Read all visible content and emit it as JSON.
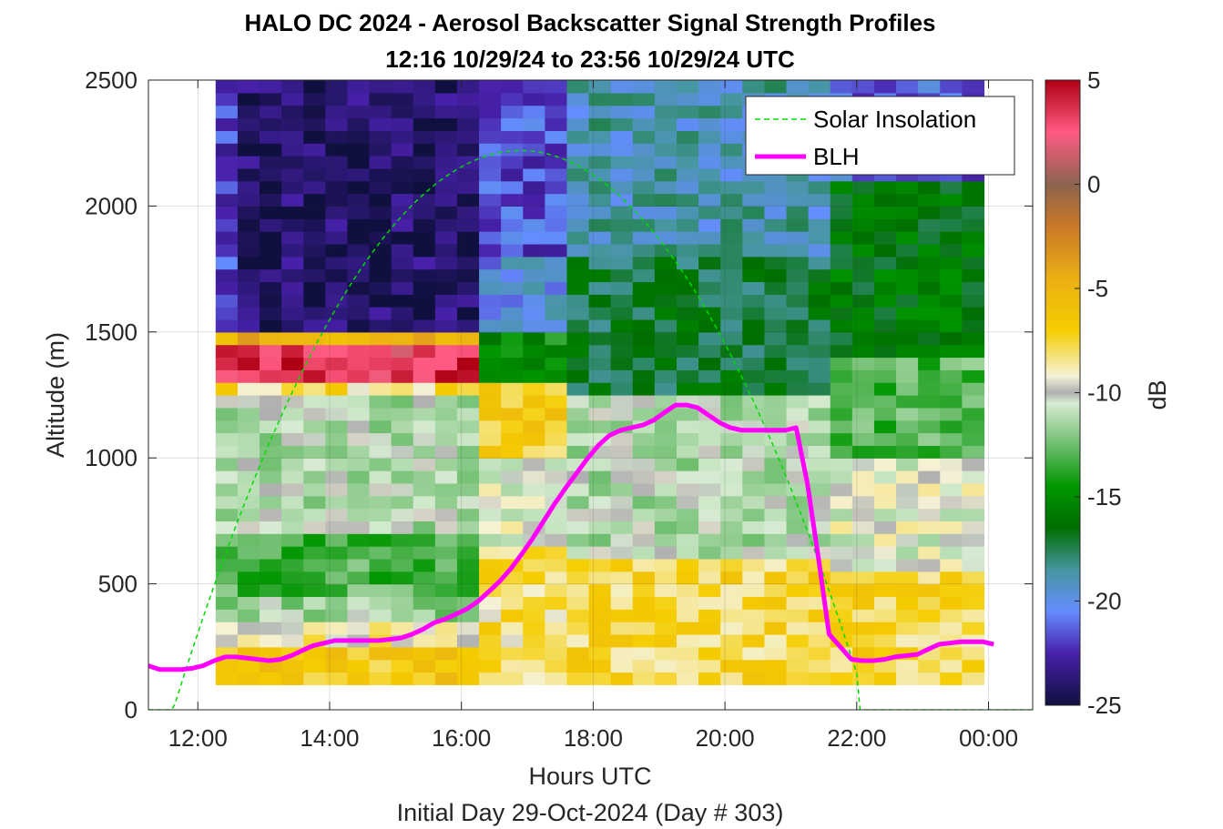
{
  "chart_data": {
    "type": "heatmap",
    "title": "HALO DC 2024 - Aerosol Backscatter Signal Strength Profiles",
    "subtitle": "12:16 10/29/24 to 23:56 10/29/24  UTC",
    "xlabel": "Hours UTC",
    "xlabel2": "Initial Day 29-Oct-2024 (Day # 303)",
    "ylabel": "Altitude (m)",
    "colorbar_label": "dB",
    "xlim": [
      11.25,
      24.67
    ],
    "ylim": [
      0,
      2500
    ],
    "x_ticks": [
      12,
      14,
      16,
      18,
      20,
      22,
      24
    ],
    "x_tick_labels": [
      "12:00",
      "14:00",
      "16:00",
      "18:00",
      "20:00",
      "22:00",
      "00:00"
    ],
    "y_ticks": [
      0,
      500,
      1000,
      1500,
      2000,
      2500
    ],
    "y_tick_labels": [
      "0",
      "500",
      "1000",
      "1500",
      "2000",
      "2500"
    ],
    "clim": [
      -25,
      5
    ],
    "colorbar_ticks": [
      5,
      0,
      -5,
      -10,
      -15,
      -20,
      -25
    ],
    "colorbar_tick_labels": [
      "5",
      "0",
      "-5",
      "-10",
      "-15",
      "-20",
      "-25"
    ],
    "legend": {
      "position": "top-right",
      "entries": [
        {
          "label": "Solar Insolation",
          "color": "#00dd00",
          "style": "dashed"
        },
        {
          "label": "BLH",
          "color": "#ff00ff",
          "style": "solid"
        }
      ]
    },
    "grid": true,
    "heatmap": {
      "time_start": 12.27,
      "time_end": 23.93,
      "n_columns": 35,
      "alt_start": 100,
      "alt_end": 2500,
      "n_rows": 48,
      "bands": [
        {
          "t0": 12.27,
          "t1": 16.3,
          "z0": 100,
          "z1": 250,
          "db": -6.5
        },
        {
          "t0": 12.27,
          "t1": 16.3,
          "z0": 250,
          "z1": 350,
          "db": -9.0
        },
        {
          "t0": 12.27,
          "t1": 16.3,
          "z0": 350,
          "z1": 450,
          "db": -11.5
        },
        {
          "t0": 12.27,
          "t1": 16.3,
          "z0": 450,
          "z1": 700,
          "db": -13.0
        },
        {
          "t0": 12.27,
          "t1": 16.3,
          "z0": 700,
          "z1": 1250,
          "db": -11.0
        },
        {
          "t0": 12.27,
          "t1": 16.3,
          "z0": 1250,
          "z1": 1300,
          "db": -8.0
        },
        {
          "t0": 12.27,
          "t1": 16.3,
          "z0": 1300,
          "z1": 1350,
          "db": 3.5
        },
        {
          "t0": 12.27,
          "t1": 16.3,
          "z0": 1350,
          "z1": 1400,
          "db": 4.0
        },
        {
          "t0": 12.27,
          "t1": 16.3,
          "z0": 1400,
          "z1": 1450,
          "db": 3.0
        },
        {
          "t0": 12.27,
          "t1": 16.3,
          "z0": 1450,
          "z1": 1500,
          "db": -5.0
        },
        {
          "t0": 12.27,
          "t1": 12.6,
          "z0": 1500,
          "z1": 2500,
          "db": -22.0
        },
        {
          "t0": 12.6,
          "t1": 16.3,
          "z0": 1500,
          "z1": 2500,
          "db": -24.0
        },
        {
          "t0": 16.3,
          "t1": 17.6,
          "z0": 100,
          "z1": 650,
          "db": -8.0
        },
        {
          "t0": 16.3,
          "t1": 17.6,
          "z0": 650,
          "z1": 1000,
          "db": -10.0
        },
        {
          "t0": 16.3,
          "t1": 17.6,
          "z0": 1000,
          "z1": 1300,
          "db": -7.0
        },
        {
          "t0": 16.3,
          "t1": 17.6,
          "z0": 1300,
          "z1": 1500,
          "db": -15.0
        },
        {
          "t0": 16.3,
          "t1": 17.6,
          "z0": 1500,
          "z1": 1800,
          "db": -20.0
        },
        {
          "t0": 16.3,
          "t1": 17.6,
          "z0": 1800,
          "z1": 2500,
          "db": -21.5
        },
        {
          "t0": 17.6,
          "t1": 21.6,
          "z0": 100,
          "z1": 600,
          "db": -7.5
        },
        {
          "t0": 17.6,
          "t1": 21.6,
          "z0": 600,
          "z1": 1250,
          "db": -11.0
        },
        {
          "t0": 17.6,
          "t1": 21.6,
          "z0": 1250,
          "z1": 1800,
          "db": -17.0
        },
        {
          "t0": 17.6,
          "t1": 21.6,
          "z0": 1800,
          "z1": 2500,
          "db": -19.0
        },
        {
          "t0": 21.6,
          "t1": 23.93,
          "z0": 100,
          "z1": 550,
          "db": -7.5
        },
        {
          "t0": 21.6,
          "t1": 23.93,
          "z0": 550,
          "z1": 1000,
          "db": -10.0
        },
        {
          "t0": 21.6,
          "t1": 23.93,
          "z0": 1000,
          "z1": 1400,
          "db": -13.0
        },
        {
          "t0": 21.6,
          "t1": 23.93,
          "z0": 1400,
          "z1": 2100,
          "db": -16.0
        },
        {
          "t0": 21.6,
          "t1": 23.93,
          "z0": 2100,
          "z1": 2500,
          "db": -21.0
        }
      ]
    },
    "series": [
      {
        "name": "BLH",
        "x": [
          11.25,
          11.42,
          11.58,
          11.75,
          11.92,
          12.08,
          12.25,
          12.42,
          12.58,
          12.75,
          12.92,
          13.08,
          13.25,
          13.42,
          13.58,
          13.75,
          13.92,
          14.08,
          14.25,
          14.42,
          14.58,
          14.75,
          14.92,
          15.08,
          15.25,
          15.42,
          15.58,
          15.75,
          15.92,
          16.08,
          16.25,
          16.42,
          16.58,
          16.75,
          16.92,
          17.08,
          17.25,
          17.42,
          17.58,
          17.75,
          17.92,
          18.08,
          18.25,
          18.42,
          18.58,
          18.75,
          18.92,
          19.08,
          19.25,
          19.42,
          19.58,
          19.75,
          19.92,
          20.08,
          20.25,
          20.42,
          20.58,
          20.75,
          20.92,
          21.08,
          21.25,
          21.42,
          21.58,
          21.75,
          21.92,
          22.08,
          22.25,
          22.42,
          22.58,
          22.75,
          22.92,
          23.08,
          23.25,
          23.42,
          23.58,
          23.75,
          23.92,
          24.08
        ],
        "y": [
          175,
          160,
          160,
          160,
          165,
          175,
          195,
          210,
          210,
          205,
          200,
          195,
          200,
          215,
          235,
          255,
          265,
          275,
          275,
          275,
          275,
          275,
          280,
          285,
          300,
          320,
          345,
          360,
          380,
          400,
          430,
          470,
          510,
          560,
          620,
          680,
          750,
          820,
          880,
          940,
          1000,
          1050,
          1090,
          1110,
          1120,
          1130,
          1150,
          1180,
          1210,
          1210,
          1200,
          1170,
          1140,
          1120,
          1110,
          1110,
          1110,
          1110,
          1110,
          1120,
          900,
          600,
          300,
          250,
          200,
          195,
          195,
          200,
          210,
          215,
          220,
          240,
          260,
          265,
          270,
          270,
          270,
          260
        ],
        "color": "#ff00ff"
      },
      {
        "name": "Solar Insolation",
        "sunrise": 11.5,
        "sunset": 22.05,
        "peak_time": 16.9,
        "peak_altitude": 2220,
        "color": "#00dd00"
      }
    ]
  }
}
